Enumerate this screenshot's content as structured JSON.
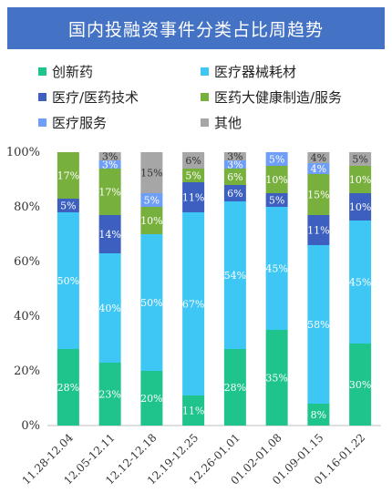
{
  "chart_data": {
    "type": "bar",
    "stacked": true,
    "title": "国内投融资事件分类占比周趋势",
    "categories": [
      "11.28-12.04",
      "12.05-12.11",
      "12.12-12.18",
      "12.19-12.25",
      "12.26-01.01",
      "01.02-01.08",
      "01.09-01.15",
      "01.16-01.22"
    ],
    "series": [
      {
        "name": "创新药",
        "color": "#1ec48c",
        "values": [
          28,
          23,
          20,
          11,
          28,
          35,
          8,
          30
        ]
      },
      {
        "name": "医疗器械耗材",
        "color": "#3ec6f4",
        "values": [
          50,
          40,
          50,
          67,
          54,
          45,
          58,
          45
        ]
      },
      {
        "name": "医疗/医药技术",
        "color": "#3c5fc0",
        "values": [
          5,
          14,
          0,
          11,
          6,
          5,
          11,
          10
        ]
      },
      {
        "name": "医药大健康制造/服务",
        "color": "#78b03e",
        "values": [
          17,
          17,
          10,
          5,
          6,
          10,
          15,
          10
        ]
      },
      {
        "name": "医疗服务",
        "color": "#6f9ef7",
        "values": [
          0,
          3,
          5,
          0,
          3,
          5,
          4,
          0
        ]
      },
      {
        "name": "其他",
        "color": "#a6a6a6",
        "values": [
          0,
          3,
          15,
          6,
          3,
          0,
          4,
          5
        ]
      }
    ],
    "data_labels": [
      [
        "28%",
        "23%",
        "20%",
        "11%",
        "28%",
        "35%",
        "8%",
        "30%"
      ],
      [
        "50%",
        "40%",
        "50%",
        "67%",
        "54%",
        "45%",
        "58%",
        "45%"
      ],
      [
        "5%",
        "14%",
        "",
        "11%",
        "6%",
        "5%",
        "11%",
        "10%"
      ],
      [
        "17%",
        "17%",
        "10%",
        "5%",
        "6%",
        "10%",
        "15%",
        "10%"
      ],
      [
        "",
        "3%",
        "5%",
        "",
        "3%",
        "5%",
        "4%",
        ""
      ],
      [
        "",
        "3%",
        "15%",
        "6%",
        "3%",
        "",
        "4%",
        "5%"
      ]
    ],
    "yticks": [
      "0%",
      "20%",
      "40%",
      "60%",
      "80%",
      "100%"
    ],
    "ylim": [
      0,
      100
    ],
    "legend_position": "top"
  }
}
